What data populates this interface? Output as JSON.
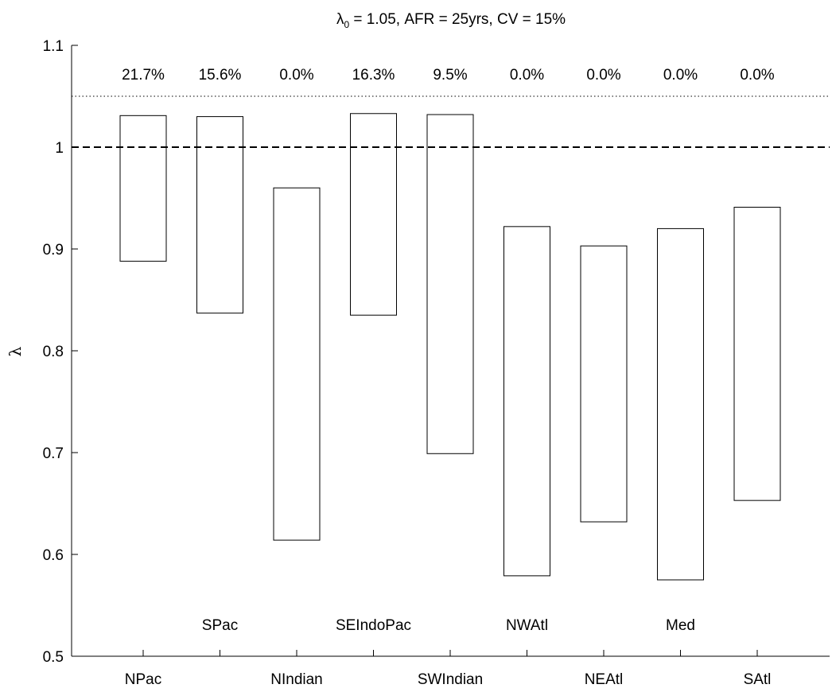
{
  "chart_data": {
    "type": "range-bar",
    "title": {
      "symbol": "λ",
      "subscript": "0",
      "rest": " = 1.05, AFR = 25yrs, CV = 15%"
    },
    "ylabel": "λ",
    "xlabel": "",
    "ylim": [
      0.5,
      1.1
    ],
    "yticks": [
      "0.5",
      "0.6",
      "0.7",
      "0.8",
      "0.9",
      "1",
      "1.1"
    ],
    "grid": false,
    "categories": [
      "NPac",
      "SPac",
      "NIndian",
      "SEIndoPac",
      "SWIndian",
      "NWAtl",
      "NEAtl",
      "Med",
      "SAtl"
    ],
    "category_label_rows": [
      "lower",
      "upper",
      "lower",
      "upper",
      "lower",
      "upper",
      "lower",
      "upper",
      "lower"
    ],
    "ranges": [
      [
        0.888,
        1.031
      ],
      [
        0.837,
        1.03
      ],
      [
        0.614,
        0.96
      ],
      [
        0.835,
        1.033
      ],
      [
        0.699,
        1.032
      ],
      [
        0.579,
        0.922
      ],
      [
        0.632,
        0.903
      ],
      [
        0.575,
        0.92
      ],
      [
        0.653,
        0.941
      ]
    ],
    "percent_labels": [
      "21.7%",
      "15.6%",
      "0.0%",
      "16.3%",
      "9.5%",
      "0.0%",
      "0.0%",
      "0.0%",
      "0.0%"
    ],
    "reference_lines": [
      {
        "value": 1.0,
        "style": "dashed"
      },
      {
        "value": 1.05,
        "style": "dotted"
      }
    ]
  }
}
